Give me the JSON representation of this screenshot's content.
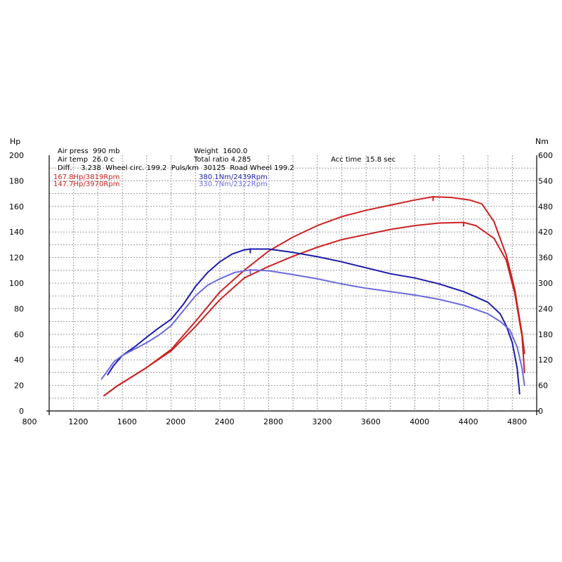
{
  "chart_data": {
    "type": "line",
    "x_range": [
      800,
      4800
    ],
    "x_ticks": [
      "800",
      "1200",
      "1600",
      "2000",
      "2400",
      "2800",
      "3200",
      "3600",
      "4000",
      "4400",
      "4800"
    ],
    "left_axis": {
      "unit": "Hp",
      "range": [
        0,
        200
      ],
      "ticks": [
        "0",
        "20",
        "40",
        "60",
        "80",
        "100",
        "120",
        "140",
        "160",
        "180",
        "200"
      ]
    },
    "right_axis": {
      "unit": "Nm",
      "range": [
        0,
        600
      ],
      "ticks": [
        "0",
        "60",
        "120",
        "180",
        "240",
        "300",
        "360",
        "420",
        "480",
        "540",
        "600"
      ]
    },
    "grid": true,
    "info": {
      "air_press": "Air press  990 mb",
      "air_temp": "Air temp  26.0 c",
      "diff": "Diff.    3.238  Wheel circ. 199.2  Puls/km  30125  Road Wheel 199.2",
      "weight": "Weight  1600.0",
      "total_ratio": "Total ratio 4.285",
      "acc_time": "Acc time  15.8 sec"
    },
    "peaks": {
      "power_1": "167.8Hp/3819Rpm",
      "power_2": "147.7Hp/3970Rpm",
      "torque_1": "380.1Nm/2439Rpm",
      "torque_2": "330.7Nm/2322Rpm"
    },
    "colors": {
      "power_1": "#cc2222",
      "power_2": "#cc2222",
      "torque_1": "#1a1aaa",
      "torque_2": "#6a6adc"
    },
    "series": [
      {
        "axis": "left",
        "color": "#cc2222",
        "width": 2,
        "points": [
          [
            1250,
            12
          ],
          [
            1350,
            19
          ],
          [
            1450,
            25
          ],
          [
            1600,
            34
          ],
          [
            1800,
            48
          ],
          [
            2000,
            70
          ],
          [
            2200,
            93
          ],
          [
            2400,
            110
          ],
          [
            2600,
            125
          ],
          [
            2800,
            136
          ],
          [
            3000,
            145
          ],
          [
            3200,
            152
          ],
          [
            3400,
            157
          ],
          [
            3600,
            161
          ],
          [
            3800,
            165
          ],
          [
            3950,
            167.5
          ],
          [
            4100,
            167
          ],
          [
            4250,
            165
          ],
          [
            4350,
            162
          ],
          [
            4450,
            148
          ],
          [
            4550,
            122
          ],
          [
            4620,
            95
          ],
          [
            4680,
            60
          ],
          [
            4700,
            45
          ]
        ]
      },
      {
        "axis": "left",
        "color": "#cc2222",
        "width": 2,
        "points": [
          [
            1250,
            12
          ],
          [
            1350,
            19
          ],
          [
            1450,
            25
          ],
          [
            1600,
            34
          ],
          [
            1800,
            47
          ],
          [
            2000,
            66
          ],
          [
            2200,
            87
          ],
          [
            2400,
            104
          ],
          [
            2600,
            113
          ],
          [
            2800,
            121
          ],
          [
            3000,
            128
          ],
          [
            3200,
            134
          ],
          [
            3400,
            138
          ],
          [
            3600,
            142
          ],
          [
            3800,
            145
          ],
          [
            4000,
            147
          ],
          [
            4200,
            147.5
          ],
          [
            4300,
            145
          ],
          [
            4450,
            135
          ],
          [
            4550,
            118
          ],
          [
            4620,
            92
          ],
          [
            4680,
            58
          ],
          [
            4700,
            30
          ]
        ]
      },
      {
        "axis": "right",
        "color": "#1a1aaa",
        "width": 2,
        "points": [
          [
            1280,
            85
          ],
          [
            1330,
            107
          ],
          [
            1400,
            130
          ],
          [
            1500,
            150
          ],
          [
            1600,
            173
          ],
          [
            1700,
            195
          ],
          [
            1800,
            215
          ],
          [
            1900,
            250
          ],
          [
            2000,
            292
          ],
          [
            2100,
            325
          ],
          [
            2200,
            350
          ],
          [
            2300,
            368
          ],
          [
            2400,
            378
          ],
          [
            2450,
            380
          ],
          [
            2600,
            380
          ],
          [
            2800,
            372
          ],
          [
            3000,
            362
          ],
          [
            3200,
            350
          ],
          [
            3400,
            336
          ],
          [
            3600,
            322
          ],
          [
            3800,
            312
          ],
          [
            4000,
            298
          ],
          [
            4200,
            280
          ],
          [
            4400,
            255
          ],
          [
            4500,
            228
          ],
          [
            4550,
            200
          ],
          [
            4600,
            160
          ],
          [
            4640,
            100
          ],
          [
            4660,
            40
          ]
        ]
      },
      {
        "axis": "right",
        "color": "#6a6adc",
        "width": 2,
        "points": [
          [
            1230,
            75
          ],
          [
            1280,
            95
          ],
          [
            1330,
            115
          ],
          [
            1400,
            130
          ],
          [
            1500,
            145
          ],
          [
            1600,
            160
          ],
          [
            1700,
            178
          ],
          [
            1800,
            200
          ],
          [
            1900,
            235
          ],
          [
            2000,
            270
          ],
          [
            2100,
            295
          ],
          [
            2200,
            310
          ],
          [
            2322,
            325
          ],
          [
            2450,
            331
          ],
          [
            2600,
            329
          ],
          [
            2800,
            320
          ],
          [
            3000,
            310
          ],
          [
            3200,
            298
          ],
          [
            3400,
            288
          ],
          [
            3600,
            280
          ],
          [
            3800,
            272
          ],
          [
            4000,
            262
          ],
          [
            4200,
            248
          ],
          [
            4400,
            228
          ],
          [
            4500,
            210
          ],
          [
            4580,
            190
          ],
          [
            4640,
            150
          ],
          [
            4680,
            100
          ],
          [
            4700,
            60
          ]
        ]
      }
    ]
  }
}
